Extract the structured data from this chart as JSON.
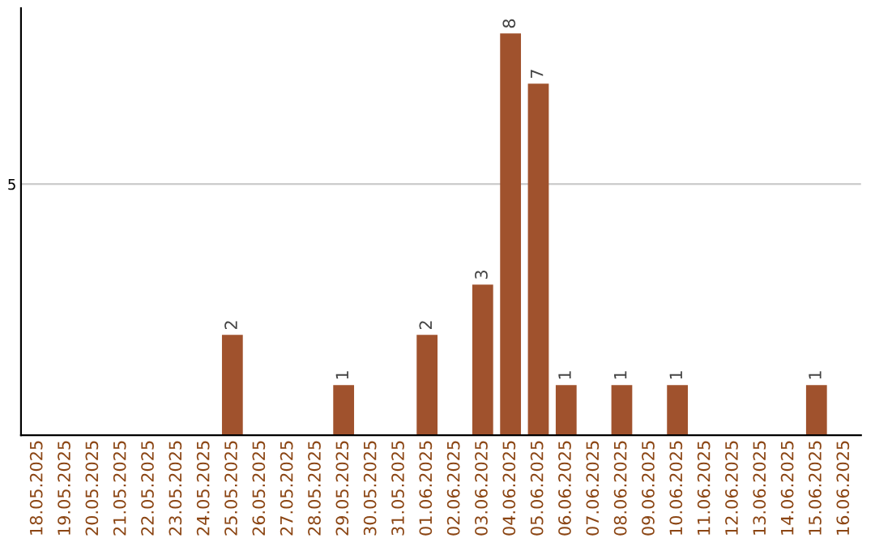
{
  "chart_data": {
    "type": "bar",
    "categories": [
      "18.05.2025",
      "19.05.2025",
      "20.05.2025",
      "21.05.2025",
      "22.05.2025",
      "23.05.2025",
      "24.05.2025",
      "25.05.2025",
      "26.05.2025",
      "27.05.2025",
      "28.05.2025",
      "29.05.2025",
      "30.05.2025",
      "31.05.2025",
      "01.06.2025",
      "02.06.2025",
      "03.06.2025",
      "04.06.2025",
      "05.06.2025",
      "06.06.2025",
      "07.06.2025",
      "08.06.2025",
      "09.06.2025",
      "10.06.2025",
      "11.06.2025",
      "12.06.2025",
      "13.06.2025",
      "14.06.2025",
      "15.06.2025",
      "16.06.2025"
    ],
    "values": [
      0,
      0,
      0,
      0,
      0,
      0,
      0,
      2,
      0,
      0,
      0,
      1,
      0,
      0,
      2,
      0,
      3,
      8,
      7,
      1,
      0,
      1,
      0,
      1,
      0,
      0,
      0,
      0,
      1,
      0
    ],
    "value_labels": [
      null,
      null,
      null,
      null,
      null,
      null,
      null,
      "2",
      null,
      null,
      null,
      "1",
      null,
      null,
      "2",
      null,
      "3",
      "8",
      "7",
      "1",
      null,
      "1",
      null,
      "1",
      null,
      null,
      null,
      null,
      "1",
      null
    ],
    "color": "#a0522d",
    "ylim": [
      0,
      8.5
    ],
    "yticks": [
      5
    ],
    "grid": "y"
  }
}
